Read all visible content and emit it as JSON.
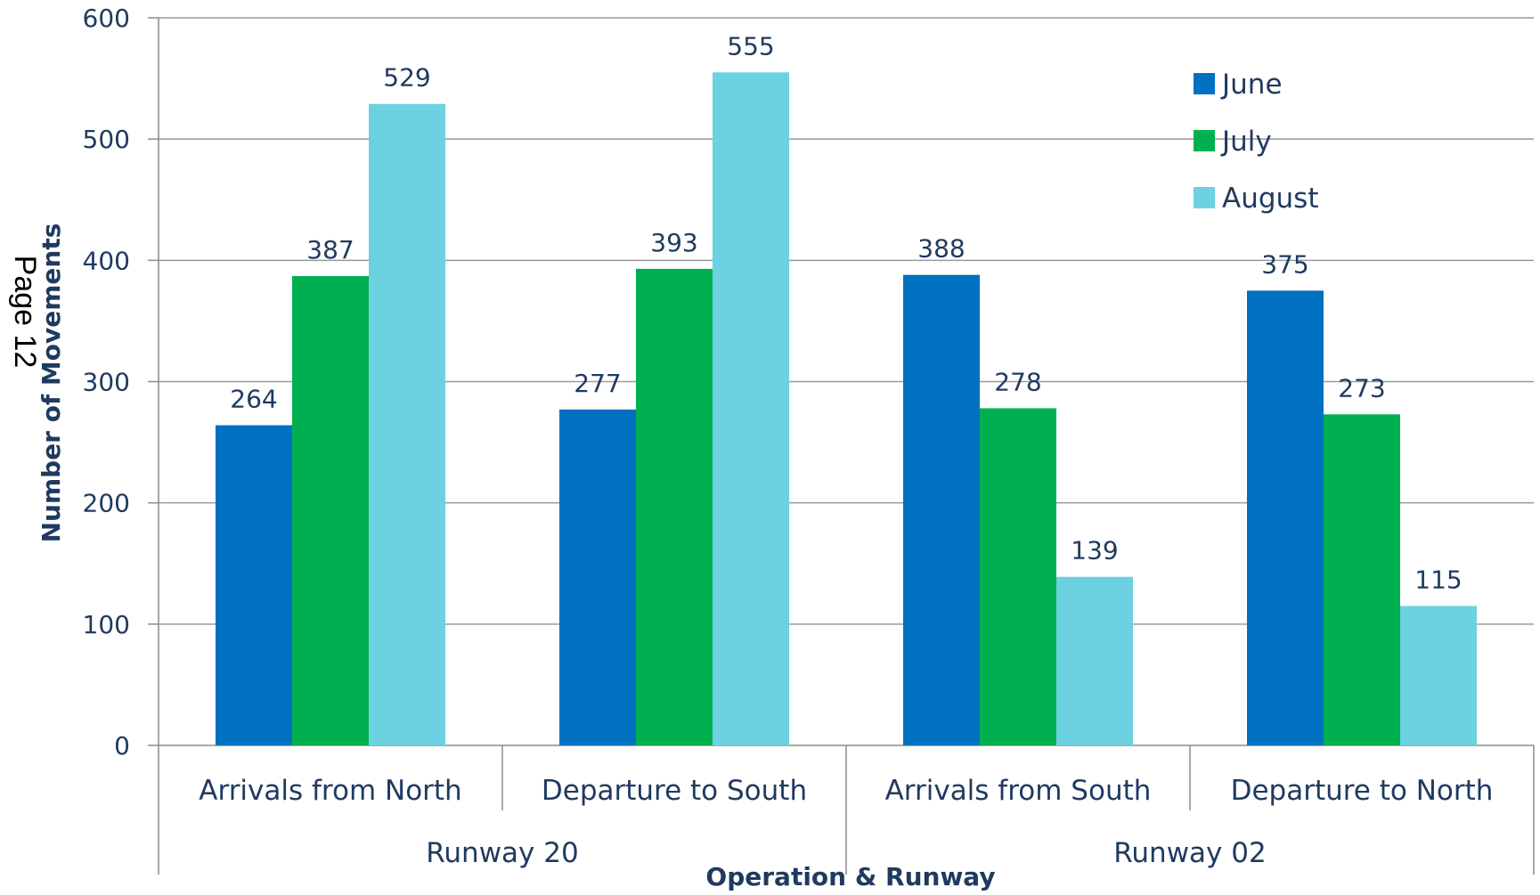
{
  "page_label": "Page 12",
  "chart_data": {
    "type": "bar",
    "title": "",
    "xlabel": "Operation & Runway",
    "ylabel": "Number of Movements",
    "ylim": [
      0,
      600
    ],
    "yticks": [
      0,
      100,
      200,
      300,
      400,
      500,
      600
    ],
    "grid": true,
    "legend_position": "top-right",
    "categories": [
      "Arrivals from North",
      "Departure to South",
      "Arrivals  from South",
      "Departure  to North"
    ],
    "groups": [
      {
        "label": "Runway 20",
        "categories": [
          "Arrivals from North",
          "Departure to South"
        ]
      },
      {
        "label": "Runway 02",
        "categories": [
          "Arrivals  from South",
          "Departure  to North"
        ]
      }
    ],
    "series": [
      {
        "name": "June",
        "color": "#0070c0",
        "values": [
          264,
          277,
          388,
          375
        ]
      },
      {
        "name": "July",
        "color": "#00b050",
        "values": [
          387,
          393,
          278,
          273
        ]
      },
      {
        "name": "August",
        "color": "#6cd1e0",
        "values": [
          529,
          555,
          139,
          115
        ]
      }
    ]
  }
}
